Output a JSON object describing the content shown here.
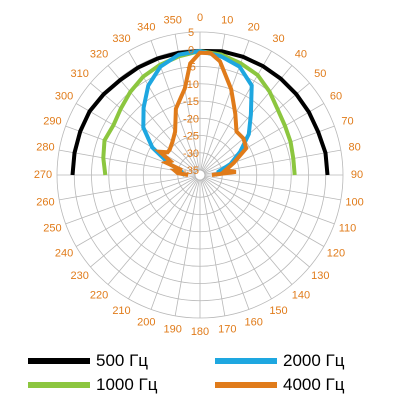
{
  "chart_data": {
    "type": "polar-line",
    "angle_unit": "degrees",
    "angle_ticks": [
      0,
      10,
      20,
      30,
      40,
      50,
      60,
      70,
      80,
      90,
      100,
      110,
      120,
      130,
      140,
      150,
      160,
      170,
      180,
      190,
      200,
      210,
      220,
      230,
      240,
      250,
      260,
      270,
      280,
      290,
      300,
      310,
      320,
      330,
      340,
      350
    ],
    "radial_ticks": [
      5,
      0,
      -5,
      -10,
      -15,
      -20,
      -25,
      -30,
      -35
    ],
    "radial_range": [
      -35,
      5
    ],
    "label_color": "#e07b1a",
    "grid_color": "#b8b8b8",
    "series": [
      {
        "name": "500 Гц",
        "color": "#000000",
        "angles": [
          270,
          280,
          290,
          300,
          310,
          320,
          330,
          340,
          350,
          0,
          10,
          20,
          30,
          40,
          50,
          60,
          70,
          80,
          90
        ],
        "values": [
          0.5,
          0.5,
          0.5,
          0.5,
          0,
          -0.5,
          -0.5,
          -0.5,
          -0.5,
          -0.5,
          0,
          0,
          0,
          0,
          0,
          0,
          0,
          0.5,
          0.5
        ]
      },
      {
        "name": "1000 Гц",
        "color": "#8cc63f",
        "angles": [
          270,
          280,
          290,
          300,
          310,
          320,
          330,
          340,
          350,
          0,
          10,
          20,
          30,
          40,
          50,
          60,
          70,
          80,
          90
        ],
        "values": [
          -9,
          -8,
          -7,
          -7.5,
          -6.5,
          -5,
          -3.5,
          -2.5,
          -1.5,
          -0.5,
          -1,
          -2,
          -3,
          -5,
          -7,
          -8,
          -8.5,
          -9,
          -9
        ]
      },
      {
        "name": "2000 Гц",
        "color": "#1ea7e0",
        "angles": [
          270,
          275,
          280,
          285,
          290,
          300,
          310,
          320,
          330,
          340,
          350,
          0,
          10,
          20,
          30,
          40,
          50,
          60,
          70,
          80,
          85,
          90
        ],
        "values": [
          -32,
          -31,
          -31,
          -30,
          -27,
          -20.5,
          -15,
          -11,
          -6.5,
          -3,
          -1,
          -0.5,
          -1.5,
          -3,
          -6.5,
          -13.5,
          -18,
          -23,
          -27,
          -31,
          -31,
          -32
        ]
      },
      {
        "name": "4000 Гц",
        "color": "#e07b1a",
        "angles": [
          270,
          275,
          280,
          285,
          290,
          295,
          300,
          305,
          310,
          320,
          330,
          340,
          350,
          355,
          0,
          5,
          10,
          20,
          30,
          40,
          50,
          60,
          70,
          80,
          85,
          90
        ],
        "values": [
          -33,
          -30,
          -29,
          -31,
          -26,
          -27,
          -23,
          -25,
          -25,
          -24,
          -22,
          -16,
          -11,
          -4,
          -1,
          -1,
          -3,
          -10,
          -16,
          -20,
          -20,
          -21,
          -26,
          -29,
          -26,
          -33
        ]
      }
    ]
  },
  "legend": {
    "items": [
      {
        "label": "500 Гц",
        "color": "#000000"
      },
      {
        "label": "2000 Гц",
        "color": "#1ea7e0"
      },
      {
        "label": "1000 Гц",
        "color": "#8cc63f"
      },
      {
        "label": "4000 Гц",
        "color": "#e07b1a"
      }
    ]
  }
}
